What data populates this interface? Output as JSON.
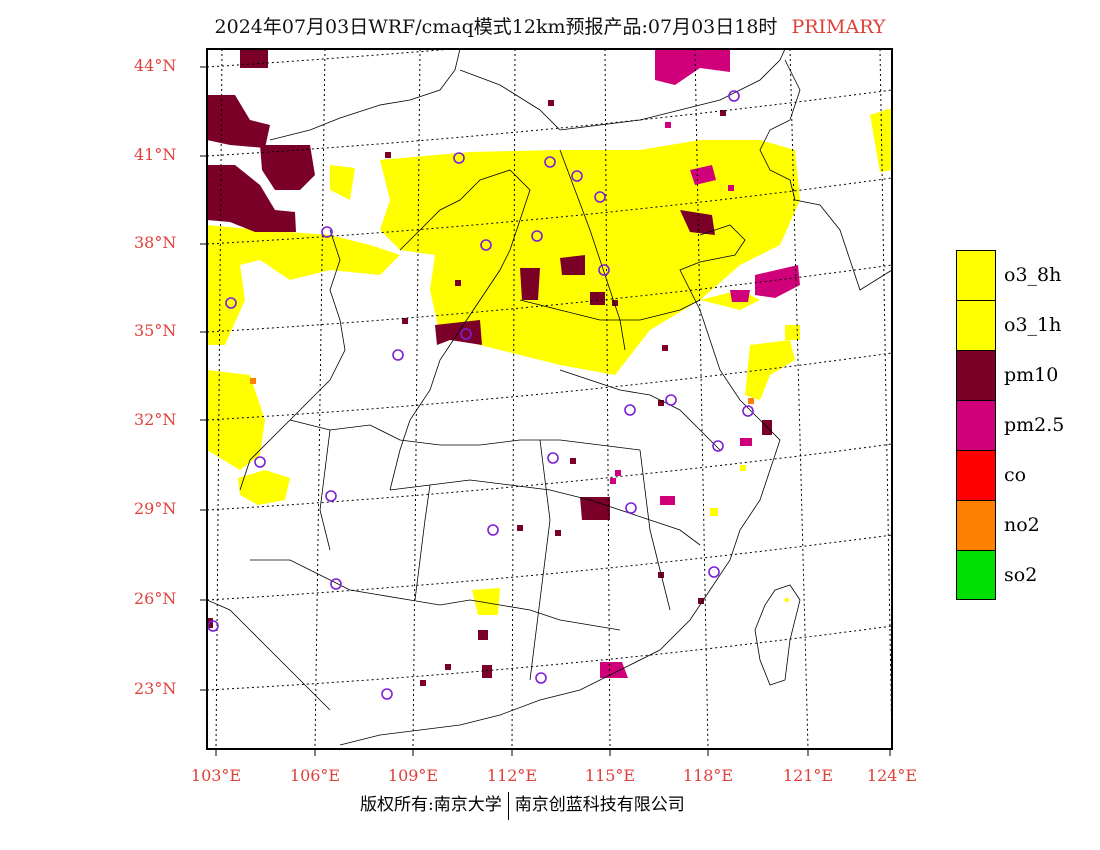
{
  "title": {
    "main": "2024年07月03日WRF/cmaq模式12km预报产品:07月03日18时",
    "tag": "PRIMARY"
  },
  "axes": {
    "lat_labels": [
      "44°N",
      "41°N",
      "38°N",
      "35°N",
      "32°N",
      "29°N",
      "26°N",
      "23°N"
    ],
    "lon_labels": [
      "103°E",
      "106°E",
      "109°E",
      "112°E",
      "115°E",
      "118°E",
      "121°E",
      "124°E"
    ]
  },
  "legend": [
    {
      "label": "o3_8h",
      "color": "#ffff00"
    },
    {
      "label": "o3_1h",
      "color": "#ffff00"
    },
    {
      "label": "pm10",
      "color": "#7a0028"
    },
    {
      "label": "pm2.5",
      "color": "#d0007a"
    },
    {
      "label": "co",
      "color": "#ff0000"
    },
    {
      "label": "no2",
      "color": "#ff8000"
    },
    {
      "label": "so2",
      "color": "#00e000"
    }
  ],
  "footer": {
    "left": "版权所有:南京大学",
    "right": "南京创蓝科技有限公司"
  },
  "colors": {
    "o3": "#ffff00",
    "pm10": "#7a0028",
    "pm25": "#d0007a",
    "label": "#e0403a",
    "station": "#7b1fd6"
  }
}
